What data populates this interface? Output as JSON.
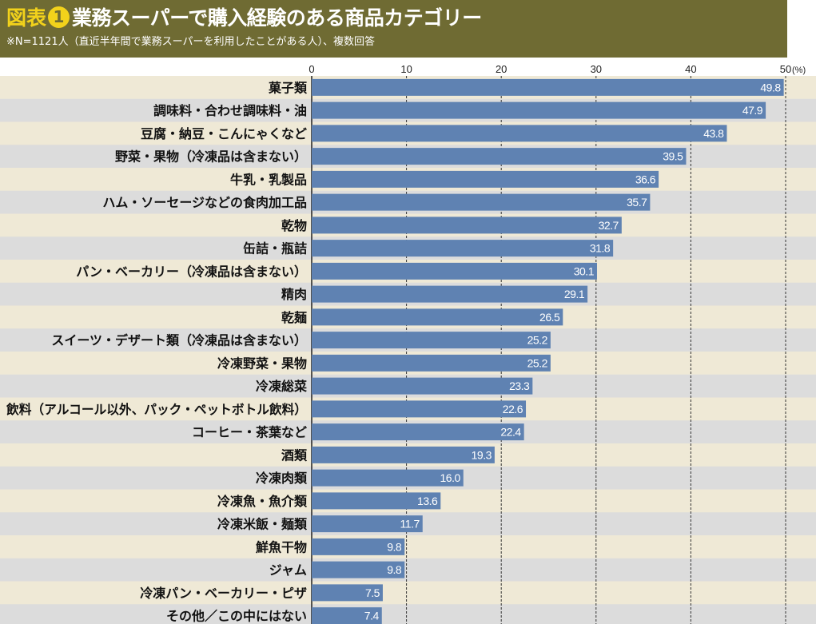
{
  "header": {
    "fig_label": "図表",
    "fig_number": "1",
    "title": "業務スーパーで購入経験のある商品カテゴリー",
    "note": "※N=1121人（直近半年間で業務スーパーを利用したことがある人）、複数回答"
  },
  "colors": {
    "header_bg": "#6f6b33",
    "title_accent": "#f2d21b",
    "bar": "#5f82b2",
    "row_odd": "#efe9d6",
    "row_even": "#dcdcdc"
  },
  "chart_data": {
    "type": "bar",
    "orientation": "horizontal",
    "title": "業務スーパーで購入経験のある商品カテゴリー",
    "unit": "(%)",
    "xlim": [
      0,
      50
    ],
    "xticks": [
      "0",
      "10",
      "20",
      "30",
      "40",
      "50"
    ],
    "grid": true,
    "categories": [
      "菓子類",
      "調味料・合わせ調味料・油",
      "豆腐・納豆・こんにゃくなど",
      "野菜・果物（冷凍品は含まない）",
      "牛乳・乳製品",
      "ハム・ソーセージなどの食肉加工品",
      "乾物",
      "缶詰・瓶詰",
      "パン・ベーカリー（冷凍品は含まない）",
      "精肉",
      "乾麺",
      "スイーツ・デザート類（冷凍品は含まない）",
      "冷凍野菜・果物",
      "冷凍総菜",
      "飲料（アルコール以外、パック・ペットボトル飲料）",
      "コーヒー・茶葉など",
      "酒類",
      "冷凍肉類",
      "冷凍魚・魚介類",
      "冷凍米飯・麺類",
      "鮮魚干物",
      "ジャム",
      "冷凍パン・ベーカリー・ピザ",
      "その他／この中にはない"
    ],
    "values": [
      49.8,
      47.9,
      43.8,
      39.5,
      36.6,
      35.7,
      32.7,
      31.8,
      30.1,
      29.1,
      26.5,
      25.2,
      25.2,
      23.3,
      22.6,
      22.4,
      19.3,
      16.0,
      13.6,
      11.7,
      9.8,
      9.8,
      7.5,
      7.4
    ],
    "value_labels": [
      "49.8",
      "47.9",
      "43.8",
      "39.5",
      "36.6",
      "35.7",
      "32.7",
      "31.8",
      "30.1",
      "29.1",
      "26.5",
      "25.2",
      "25.2",
      "23.3",
      "22.6",
      "22.4",
      "19.3",
      "16.0",
      "13.6",
      "11.7",
      "9.8",
      "9.8",
      "7.5",
      "7.4"
    ]
  }
}
